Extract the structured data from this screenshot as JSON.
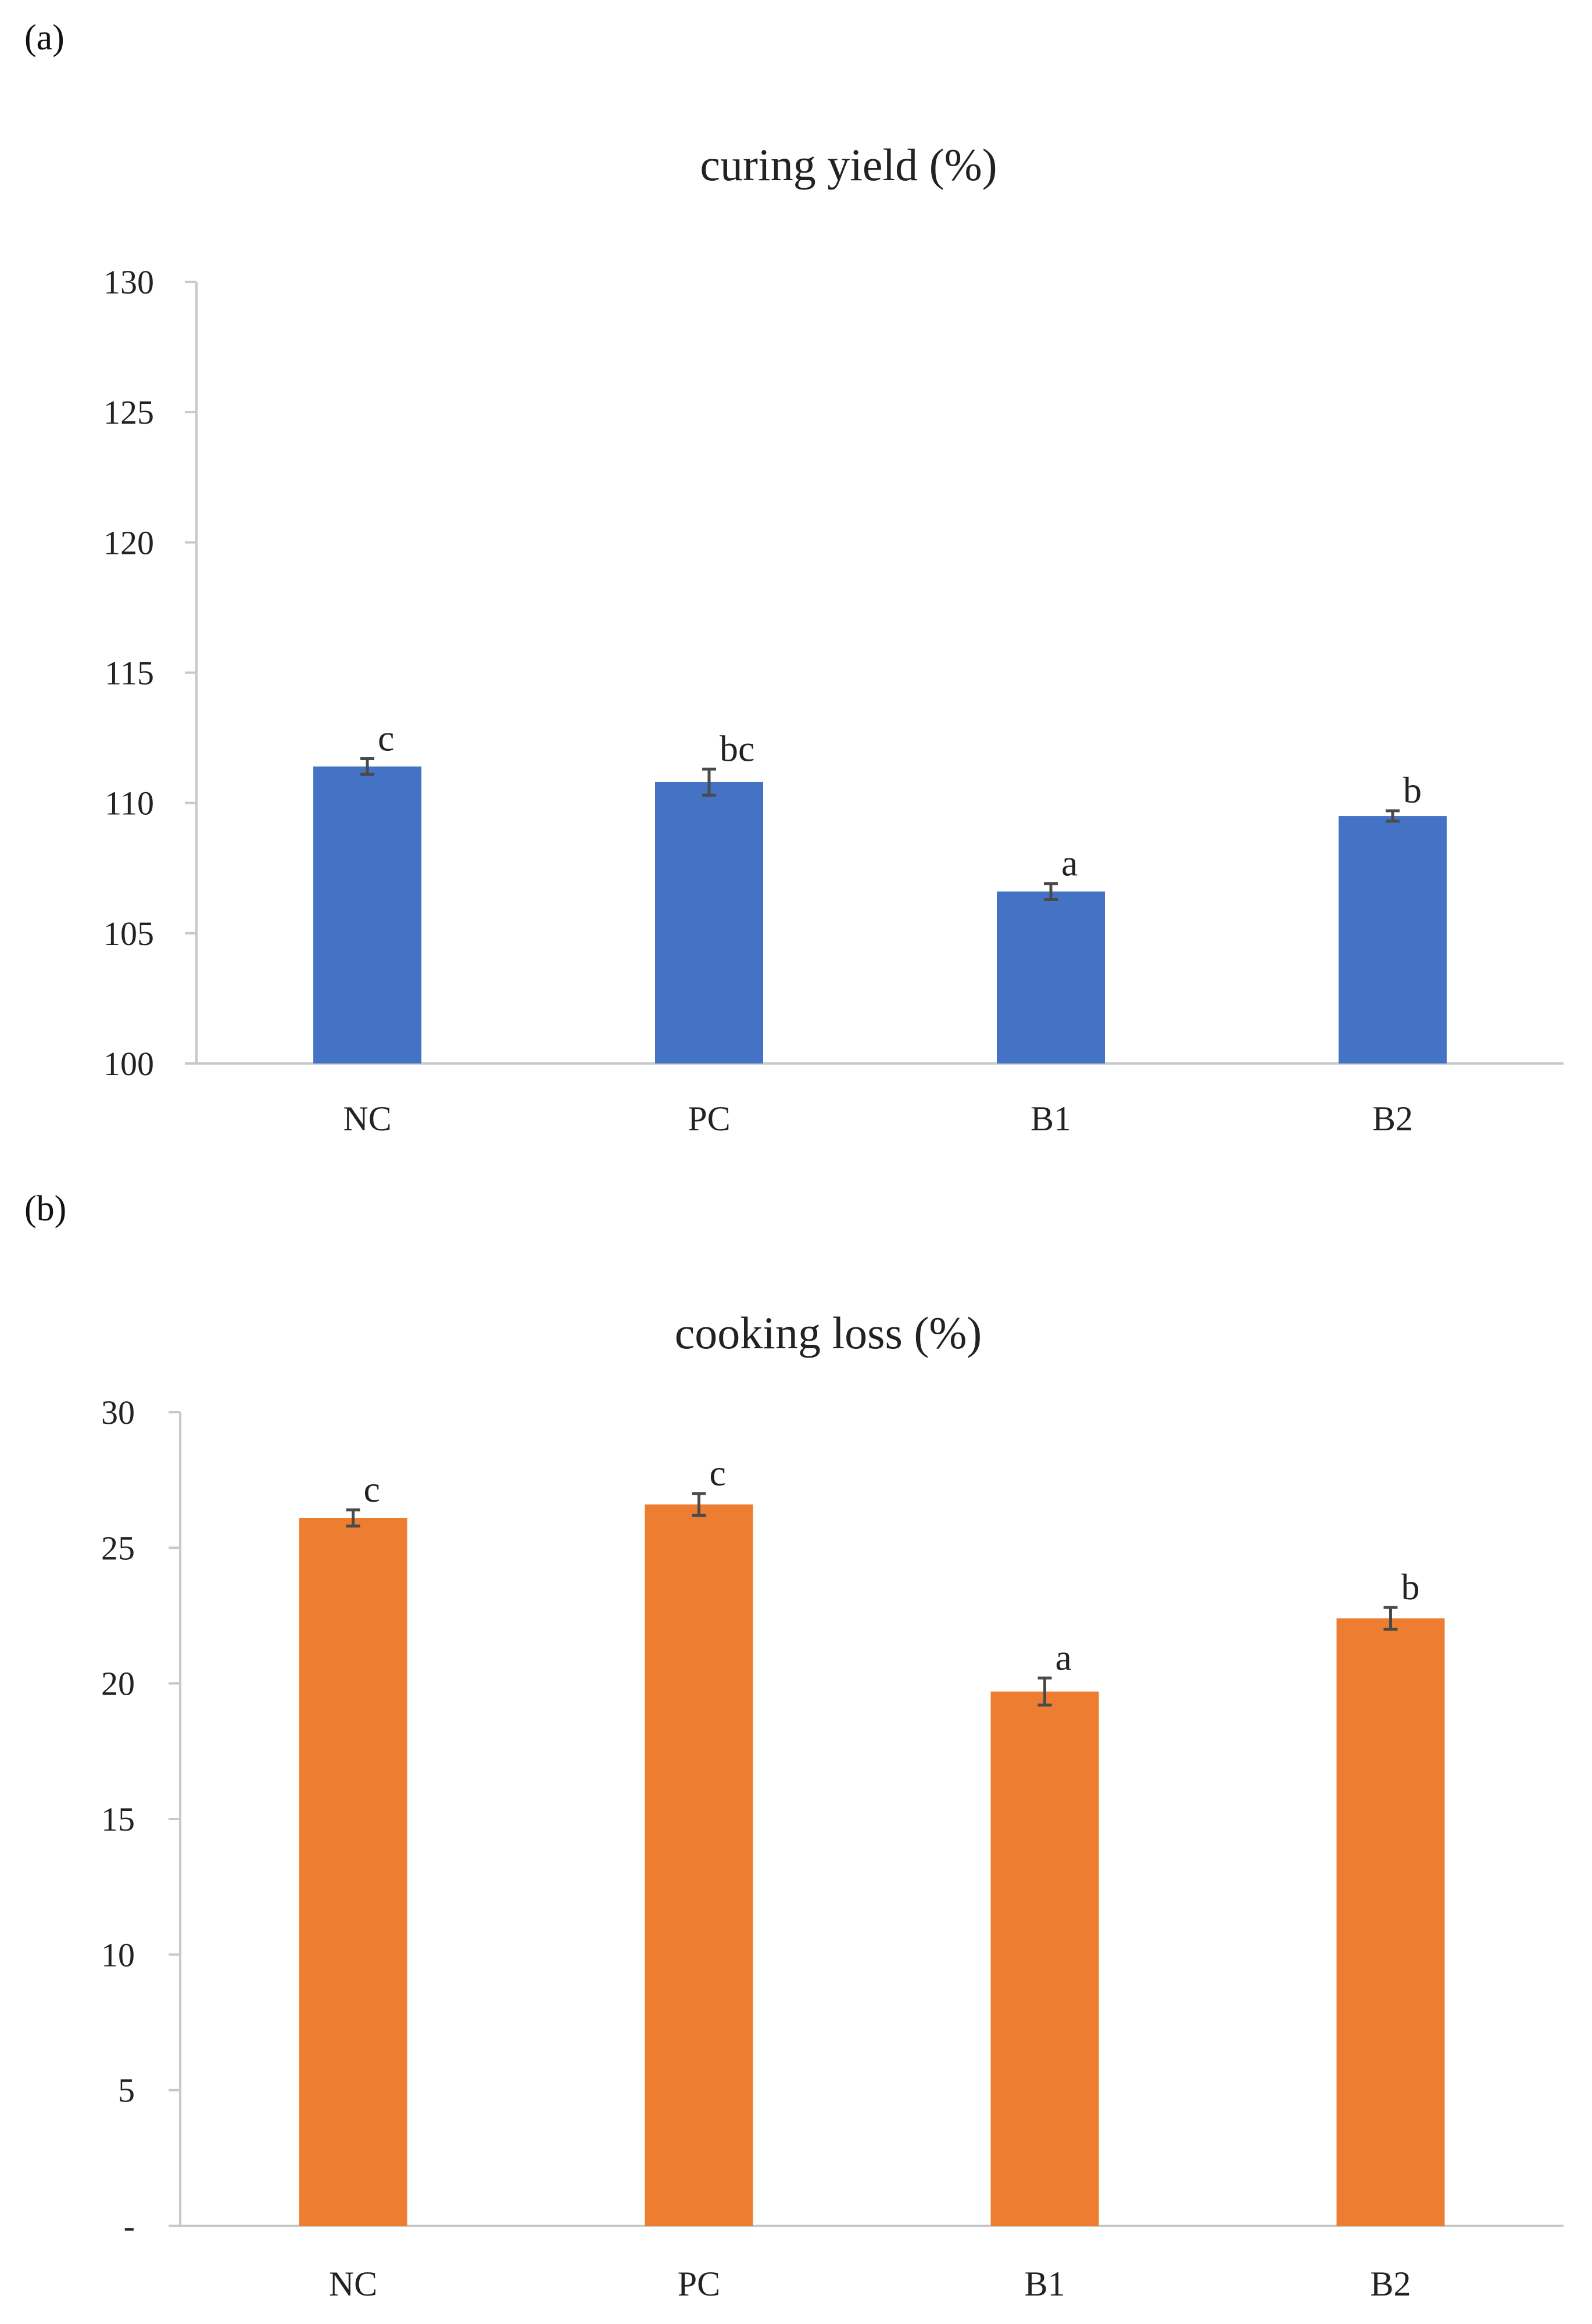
{
  "panels": {
    "a": {
      "label": "(a)"
    },
    "b": {
      "label": "(b)"
    }
  },
  "chart_data": [
    {
      "type": "bar",
      "title": "curing yield (%)",
      "xlabel": "",
      "ylabel": "",
      "categories": [
        "NC",
        "PC",
        "B1",
        "B2"
      ],
      "values": [
        111.4,
        110.8,
        106.6,
        109.5
      ],
      "errors": [
        0.3,
        0.5,
        0.3,
        0.2
      ],
      "significance": [
        "c",
        "bc",
        "a",
        "b"
      ],
      "ylim": [
        100,
        130
      ],
      "yticks": [
        100,
        105,
        110,
        115,
        120,
        125,
        130
      ],
      "ytick_labels": [
        "100",
        "105",
        "110",
        "115",
        "120",
        "125",
        "130"
      ],
      "color": "#4472C4",
      "grid": false
    },
    {
      "type": "bar",
      "title": "cooking loss (%)",
      "xlabel": "",
      "ylabel": "",
      "categories": [
        "NC",
        "PC",
        "B1",
        "B2"
      ],
      "values": [
        26.1,
        26.6,
        19.7,
        22.4
      ],
      "errors": [
        0.3,
        0.4,
        0.5,
        0.4
      ],
      "significance": [
        "c",
        "c",
        "a",
        "b"
      ],
      "ylim": [
        0,
        30
      ],
      "yticks": [
        0,
        5,
        10,
        15,
        20,
        25,
        30
      ],
      "ytick_labels": [
        "-",
        "5",
        "10",
        "15",
        "20",
        "25",
        "30"
      ],
      "color": "#ED7D31",
      "grid": false
    }
  ]
}
